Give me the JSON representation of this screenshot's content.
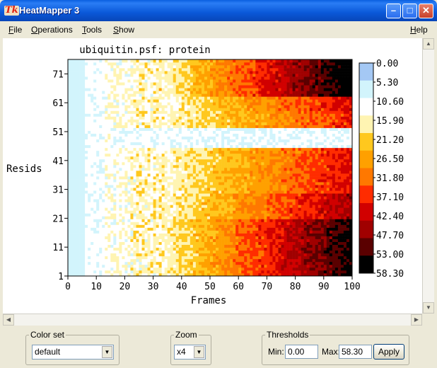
{
  "window": {
    "title": "HeatMapper 3",
    "icon_text": "Tk"
  },
  "menu": {
    "items": [
      {
        "label": "File",
        "accel": "F",
        "rest": "ile"
      },
      {
        "label": "Operations",
        "accel": "O",
        "rest": "perations"
      },
      {
        "label": "Tools",
        "accel": "T",
        "rest": "ools"
      },
      {
        "label": "Show",
        "accel": "S",
        "rest": "how"
      },
      {
        "label": "Help",
        "accel": "H",
        "rest": "elp"
      }
    ]
  },
  "chart_data": {
    "type": "heatmap",
    "title": "ubiquitin.psf: protein",
    "xlabel": "Frames",
    "ylabel": "Resids",
    "xlim": [
      0,
      100
    ],
    "ylim": [
      1,
      76
    ],
    "x_ticks": [
      "0",
      "10",
      "20",
      "30",
      "40",
      "50",
      "60",
      "70",
      "80",
      "90",
      "100"
    ],
    "y_ticks": [
      "1",
      "11",
      "21",
      "31",
      "41",
      "51",
      "61",
      "71"
    ],
    "colorbar_labels": [
      "0.00",
      "5.30",
      "10.60",
      "15.90",
      "21.20",
      "26.50",
      "31.80",
      "37.10",
      "42.40",
      "47.70",
      "53.00",
      "58.30"
    ],
    "colorbar_colors": [
      "#a4c8f4",
      "#d2f4fc",
      "#ffffff",
      "#fff4b2",
      "#ffc81e",
      "#ffa000",
      "#ff7800",
      "#ff2c00",
      "#d10000",
      "#a00000",
      "#5a0000",
      "#000000"
    ]
  },
  "controls": {
    "colorset": {
      "legend": "Color set",
      "value": "default"
    },
    "zoom": {
      "legend": "Zoom",
      "value": "x4"
    },
    "thresholds": {
      "legend": "Thresholds",
      "min_label": "Min:",
      "min_value": "0.00",
      "max_label": "Max:",
      "max_value": "58.30",
      "apply_label": "Apply"
    }
  }
}
